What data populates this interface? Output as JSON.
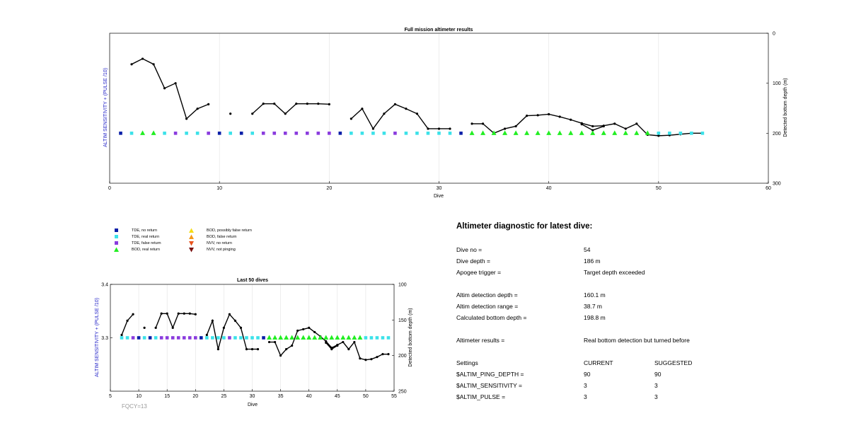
{
  "main_chart": {
    "title": "Full mission altimeter results",
    "xlabel": "Dive",
    "ylabel_left": "ALTIM SENSITIVITY + (PULSE /10)",
    "ylabel_right": "Detected bottom depth (m)",
    "xlim": [
      0,
      60
    ],
    "xticks": [
      "0",
      "10",
      "20",
      "30",
      "40",
      "50",
      "60"
    ],
    "ylim_right": [
      0,
      300
    ],
    "yticks_right": [
      "0",
      "100",
      "200",
      "300"
    ],
    "grid": "vertical"
  },
  "inset_chart": {
    "title": "Last 50 dives",
    "xlabel": "Dive",
    "ylabel_left": "ALTIM SENSITIVITY + (PULSE /10)",
    "ylabel_right": "Detected bottom depth (m)",
    "xlim": [
      5,
      55
    ],
    "xticks": [
      "5",
      "10",
      "15",
      "20",
      "25",
      "30",
      "35",
      "40",
      "45",
      "50",
      "55"
    ],
    "ylim_left": [
      3.2,
      3.4
    ],
    "yticks_left": [
      "3.3",
      "3.4"
    ],
    "ylim_right": [
      100,
      250
    ],
    "yticks_right": [
      "100",
      "150",
      "200",
      "250"
    ],
    "footnote": "FQCY=13"
  },
  "legend": [
    {
      "label": "TDE, no return",
      "marker": "square",
      "color": "#0a1fa8"
    },
    {
      "label": "TDE, real return",
      "marker": "square",
      "color": "#3ce2e9"
    },
    {
      "label": "TDE, false return",
      "marker": "square",
      "color": "#8a3bde"
    },
    {
      "label": "BOD, real return",
      "marker": "triangle-up",
      "color": "#22ee22"
    },
    {
      "label": "BOD, possibly false return",
      "marker": "triangle-up",
      "color": "#f5dc16"
    },
    {
      "label": "BOD, false return",
      "marker": "triangle-up",
      "color": "#f59a1a"
    },
    {
      "label": "NVV, no return",
      "marker": "triangle-down",
      "color": "#e8541e"
    },
    {
      "label": "NVV, not pinging",
      "marker": "triangle-down",
      "color": "#7a1010"
    }
  ],
  "chart_data": [
    {
      "type": "scatter",
      "title": "Full mission altimeter results",
      "xlabel": "Dive",
      "ylabel": "Detected bottom depth (m)",
      "xlim": [
        0,
        60
      ],
      "ylim": [
        0,
        300
      ],
      "y_axis": "right, reversed",
      "markers_at_depth": 200,
      "marker_series": [
        {
          "name": "TDE, no return",
          "x": [
            1,
            10,
            12,
            21,
            32
          ]
        },
        {
          "name": "TDE, real return",
          "x": [
            2,
            5,
            7,
            8,
            11,
            13,
            22,
            23,
            24,
            25,
            27,
            28,
            29,
            30,
            31,
            50,
            51,
            52,
            53,
            54
          ]
        },
        {
          "name": "TDE, false return",
          "x": [
            6,
            9,
            14,
            15,
            16,
            17,
            18,
            19,
            20,
            26
          ]
        },
        {
          "name": "BOD, real return",
          "x": [
            3,
            4,
            33,
            34,
            35,
            36,
            37,
            38,
            39,
            40,
            41,
            42,
            43,
            44,
            45,
            46,
            47,
            48,
            49
          ]
        }
      ],
      "bottom_depth_segments": [
        {
          "x": [
            2,
            3,
            4,
            5,
            6,
            7,
            8,
            9
          ],
          "y": [
            62,
            51,
            62,
            110,
            100,
            171,
            151,
            142
          ]
        },
        {
          "x": [
            11
          ],
          "y": [
            161
          ]
        },
        {
          "x": [
            13,
            14,
            15,
            16,
            17,
            18,
            19,
            20
          ],
          "y": [
            161,
            141,
            141,
            161,
            141,
            141,
            141,
            142
          ]
        },
        {
          "x": [
            22,
            23,
            24,
            25,
            26,
            27,
            28,
            29,
            30,
            31
          ],
          "y": [
            171,
            151,
            191,
            161,
            142,
            151,
            161,
            191,
            191,
            191
          ]
        },
        {
          "x": [
            33,
            34,
            35,
            36,
            37,
            38,
            39,
            40,
            41,
            42,
            43,
            44,
            45,
            46,
            47,
            48,
            49,
            50,
            51,
            52,
            53,
            54
          ],
          "y": [
            181,
            181,
            200,
            191,
            186,
            165,
            164,
            162,
            167,
            173,
            180,
            186,
            185,
            181,
            191,
            181,
            203,
            205,
            204,
            202,
            200,
            200
          ]
        },
        {
          "x": [
            43,
            44,
            45
          ],
          "y": [
            182,
            194,
            186
          ]
        }
      ]
    },
    {
      "type": "scatter",
      "title": "Last 50 dives",
      "xlabel": "Dive",
      "ylabel": "Detected bottom depth (m)",
      "xlim": [
        5,
        55
      ],
      "ylim_left": [
        3.2,
        3.4
      ],
      "ylim_right": [
        100,
        250
      ],
      "markers_at_sensitivity": 3.3,
      "marker_series": [
        {
          "name": "TDE, no return",
          "x": [
            10,
            12,
            21,
            32
          ]
        },
        {
          "name": "TDE, real return",
          "x": [
            7,
            8,
            11,
            13,
            22,
            23,
            24,
            25,
            27,
            28,
            29,
            30,
            31,
            50,
            51,
            52,
            53,
            54
          ]
        },
        {
          "name": "TDE, false return",
          "x": [
            9,
            14,
            15,
            16,
            17,
            18,
            19,
            20,
            26
          ]
        },
        {
          "name": "BOD, real return",
          "x": [
            33,
            34,
            35,
            36,
            37,
            38,
            39,
            40,
            41,
            42,
            43,
            44,
            45,
            46,
            47,
            48,
            49
          ]
        }
      ],
      "bottom_depth_segments": [
        {
          "x": [
            7,
            8,
            9
          ],
          "y": [
            171,
            151,
            142
          ]
        },
        {
          "x": [
            11
          ],
          "y": [
            161
          ]
        },
        {
          "x": [
            13,
            14,
            15,
            16,
            17,
            18,
            19,
            20
          ],
          "y": [
            161,
            141,
            141,
            161,
            141,
            141,
            141,
            142
          ]
        },
        {
          "x": [
            22,
            23,
            24,
            25,
            26,
            27,
            28,
            29,
            30,
            31
          ],
          "y": [
            171,
            151,
            191,
            161,
            142,
            151,
            161,
            191,
            191,
            191
          ]
        },
        {
          "x": [
            33,
            34,
            35,
            36,
            37,
            38,
            39,
            40,
            41,
            42,
            43,
            44,
            45,
            46,
            47,
            48,
            49,
            50,
            51,
            52,
            53,
            54
          ],
          "y": [
            181,
            181,
            200,
            191,
            186,
            165,
            163,
            161,
            167,
            173,
            180,
            189,
            185,
            181,
            191,
            181,
            204,
            206,
            205,
            202,
            198,
            198
          ]
        },
        {
          "x": [
            43,
            44,
            45
          ],
          "y": [
            182,
            191,
            186
          ]
        }
      ]
    }
  ],
  "diagnostic": {
    "title": "Altimeter diagnostic for latest dive:",
    "dive_no": {
      "label": "Dive no =",
      "value": "54"
    },
    "dive_depth": {
      "label": "Dive depth =",
      "value": "186 m"
    },
    "apogee": {
      "label": "Apogee trigger =",
      "value": "Target depth exceeded"
    },
    "detect_depth": {
      "label": "Altim detection depth =",
      "value": "160.1 m"
    },
    "detect_range": {
      "label": "Altim detection range =",
      "value": "38.7 m"
    },
    "bottom_depth": {
      "label": "Calculated bottom depth =",
      "value": "198.8 m"
    },
    "results": {
      "label": "Altimeter results =",
      "value": "Real bottom detection but turned before"
    },
    "settings": {
      "label": "Settings",
      "current": "CURRENT",
      "suggested": "SUGGESTED"
    },
    "ping_depth": {
      "label": "$ALTIM_PING_DEPTH =",
      "current": "90",
      "suggested": "90"
    },
    "sensitivity": {
      "label": "$ALTIM_SENSITIVITY =",
      "current": "3",
      "suggested": "3"
    },
    "pulse": {
      "label": "$ALTIM_PULSE =",
      "current": "3",
      "suggested": "3"
    }
  }
}
